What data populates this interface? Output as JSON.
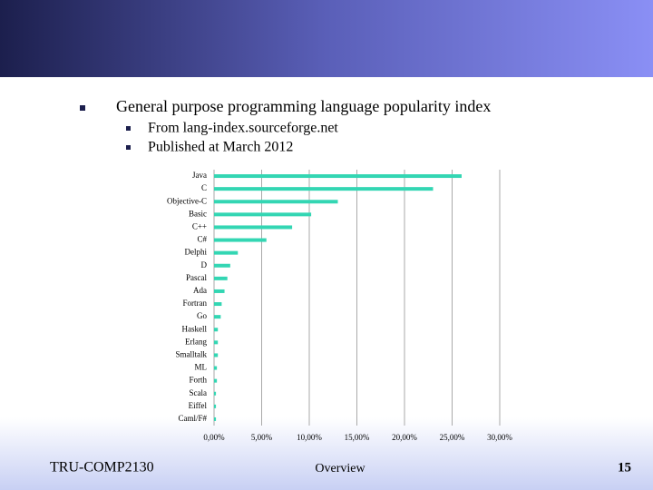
{
  "slide": {
    "bullet": "General purpose programming language popularity index",
    "sub_bullets": [
      "From lang-index.sourceforge.net",
      "Published at March 2012"
    ],
    "footer_left": "TRU-COMP2130",
    "footer_center": "Overview",
    "page_number": "15"
  },
  "chart_data": {
    "type": "bar",
    "orientation": "horizontal",
    "categories": [
      "Java",
      "C",
      "Objective-C",
      "Basic",
      "C++",
      "C#",
      "Delphi",
      "D",
      "Pascal",
      "Ada",
      "Fortran",
      "Go",
      "Haskell",
      "Erlang",
      "Smalltalk",
      "ML",
      "Forth",
      "Scala",
      "Eiffel",
      "Caml/F#"
    ],
    "values": [
      26.0,
      23.0,
      13.0,
      10.2,
      8.2,
      5.5,
      2.5,
      1.7,
      1.4,
      1.1,
      0.8,
      0.7,
      0.4,
      0.4,
      0.4,
      0.3,
      0.3,
      0.2,
      0.2,
      0.2
    ],
    "color": "#33d6b3",
    "xlim": [
      0,
      30
    ],
    "xticks": [
      {
        "value": 0,
        "label": "0,00%"
      },
      {
        "value": 5,
        "label": "5,00%"
      },
      {
        "value": 10,
        "label": "10,00%"
      },
      {
        "value": 15,
        "label": "15,00%"
      },
      {
        "value": 20,
        "label": "20,00%"
      },
      {
        "value": 25,
        "label": "25,00%"
      },
      {
        "value": 30,
        "label": "30,00%"
      }
    ],
    "grid": true
  }
}
